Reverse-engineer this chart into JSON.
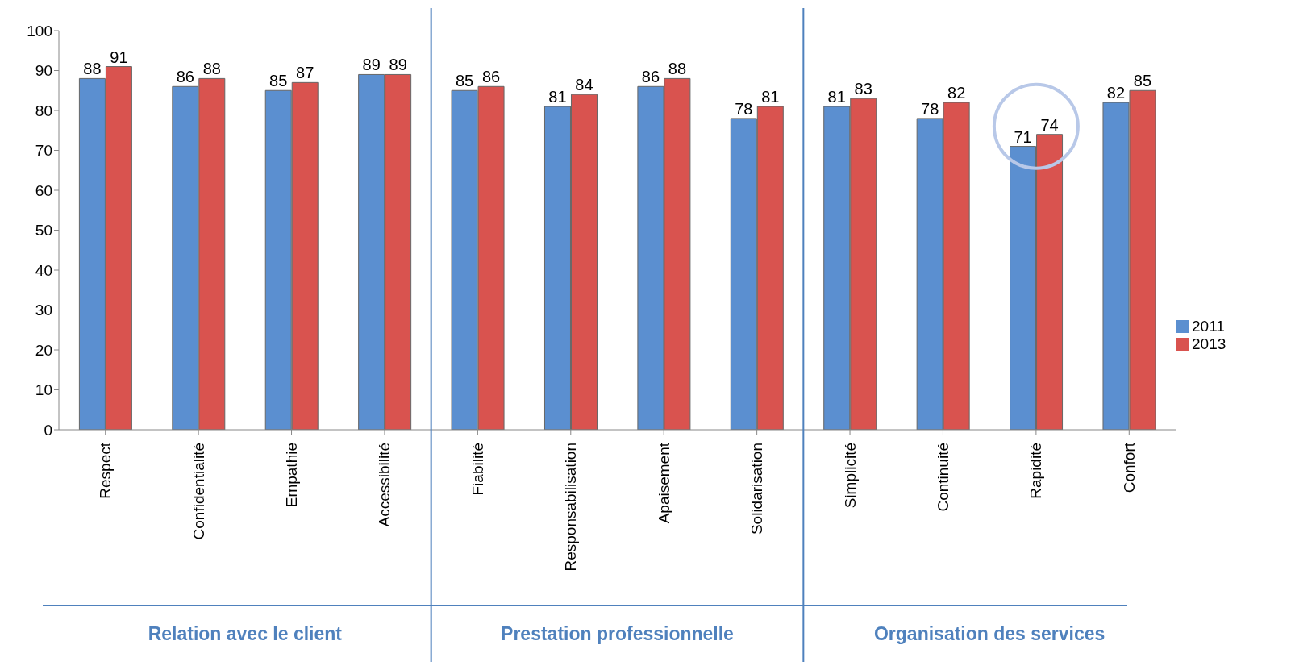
{
  "chart_data": {
    "type": "bar",
    "categories": [
      "Respect",
      "Confidentialité",
      "Empathie",
      "Accessibilité",
      "Fiabilité",
      "Responsabilisation",
      "Apaisement",
      "Solidarisation",
      "Simplicité",
      "Continuité",
      "Rapidité",
      "Confort"
    ],
    "series": [
      {
        "name": "2011",
        "color": "#5b8fd0",
        "values": [
          88,
          86,
          85,
          89,
          85,
          81,
          86,
          78,
          81,
          78,
          71,
          82
        ]
      },
      {
        "name": "2013",
        "color": "#d9534f",
        "values": [
          91,
          88,
          87,
          89,
          86,
          84,
          88,
          81,
          83,
          82,
          74,
          85
        ]
      }
    ],
    "ylim": [
      0,
      100
    ],
    "yticks": [
      0,
      10,
      20,
      30,
      40,
      50,
      60,
      70,
      80,
      90,
      100
    ],
    "grid": false,
    "legend": "right",
    "data_labels": true,
    "annotations": [
      "Relation avec le client",
      "Prestation professionnelle",
      "Organisation des services"
    ]
  }
}
